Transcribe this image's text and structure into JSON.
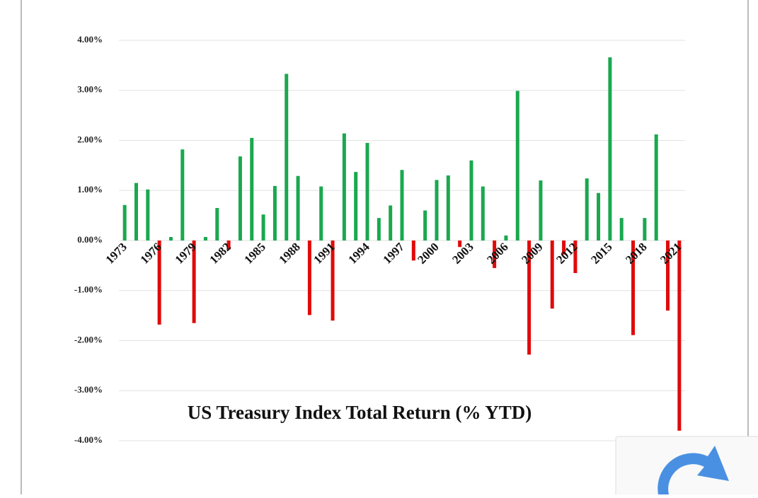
{
  "chart_data": {
    "type": "bar",
    "title": "US Treasury Index Total Return (% YTD)",
    "categories": [
      "1973",
      null,
      null,
      "1976",
      null,
      null,
      "1979",
      null,
      null,
      "1982",
      null,
      null,
      "1985",
      null,
      null,
      "1988",
      null,
      null,
      "1991",
      null,
      null,
      "1994",
      null,
      null,
      "1997",
      null,
      null,
      "2000",
      null,
      null,
      "2003",
      null,
      null,
      "2006",
      null,
      null,
      "2009",
      null,
      null,
      "2012",
      null,
      null,
      "2015",
      null,
      null,
      "2018",
      null,
      null,
      "2021"
    ],
    "values": [
      0.71,
      1.15,
      1.02,
      -1.68,
      0.07,
      1.82,
      -1.65,
      0.07,
      0.65,
      -0.18,
      1.68,
      2.05,
      0.52,
      1.09,
      3.33,
      1.29,
      -1.49,
      1.08,
      -1.6,
      2.14,
      1.37,
      1.95,
      0.45,
      0.7,
      1.41,
      -0.4,
      0.6,
      1.21,
      1.3,
      -0.13,
      1.6,
      1.08,
      -0.55,
      0.1,
      2.99,
      -2.28,
      1.2,
      -1.36,
      -0.28,
      -0.65,
      1.24,
      0.95,
      3.66,
      0.45,
      -1.89,
      0.45,
      2.12,
      -1.4,
      -3.8
    ],
    "positive_color": "#1aa84f",
    "negative_color": "#e00a0a",
    "ylim": [
      -4,
      4
    ],
    "yticks": [
      {
        "value": -4,
        "label": "-4.00%"
      },
      {
        "value": -3,
        "label": "-3.00%"
      },
      {
        "value": -2,
        "label": "-2.00%"
      },
      {
        "value": -1,
        "label": "-1.00%"
      },
      {
        "value": 0,
        "label": "0.00%"
      },
      {
        "value": 1,
        "label": "1.00%"
      },
      {
        "value": 2,
        "label": "2.00%"
      },
      {
        "value": 3,
        "label": "3.00%"
      },
      {
        "value": 4,
        "label": "4.00%"
      }
    ],
    "grid": true
  }
}
